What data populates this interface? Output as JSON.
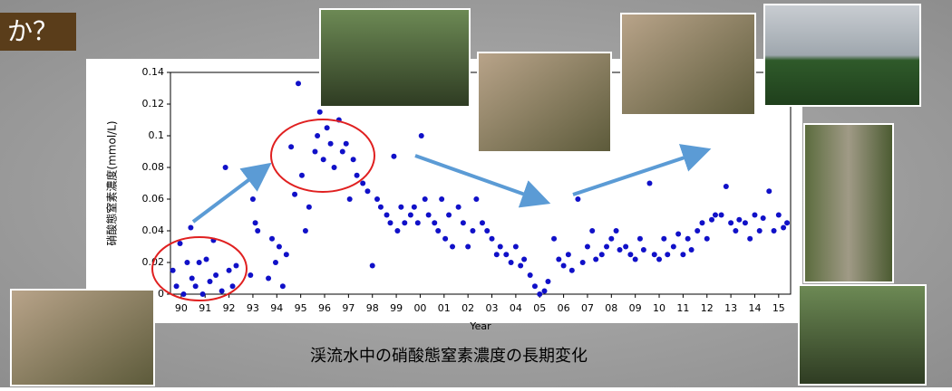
{
  "header": {
    "title": "か？"
  },
  "caption": "渓流水中の硝酸態窒素濃度の長期変化",
  "chart_data": {
    "type": "scatter",
    "x_label": "Year",
    "y_label": "硝酸態窒素濃度(mmol/L)",
    "color": "#1010c8",
    "x": [
      1989.65,
      1989.8,
      1989.95,
      1990.1,
      1990.25,
      1990.4,
      1990.45,
      1990.6,
      1990.75,
      1990.9,
      1991.05,
      1991.2,
      1991.35,
      1991.45,
      1991.7,
      1991.85,
      1992.0,
      1992.15,
      1992.3,
      1992.9,
      1993.0,
      1993.1,
      1993.2,
      1993.65,
      1993.8,
      1993.95,
      1994.1,
      1994.25,
      1994.4,
      1994.6,
      1994.75,
      1994.9,
      1995.05,
      1995.2,
      1995.35,
      1995.6,
      1995.7,
      1995.8,
      1995.95,
      1996.1,
      1996.25,
      1996.4,
      1996.6,
      1996.75,
      1996.9,
      1997.05,
      1997.2,
      1997.35,
      1997.6,
      1997.8,
      1998.0,
      1998.2,
      1998.35,
      1998.6,
      1998.75,
      1998.9,
      1999.05,
      1999.2,
      1999.35,
      1999.6,
      1999.75,
      1999.9,
      2000.05,
      2000.2,
      2000.35,
      2000.6,
      2000.75,
      2000.9,
      2001.05,
      2001.2,
      2001.35,
      2001.6,
      2001.8,
      2002.0,
      2002.2,
      2002.35,
      2002.6,
      2002.8,
      2003.0,
      2003.2,
      2003.35,
      2003.6,
      2003.8,
      2004.0,
      2004.2,
      2004.35,
      2004.6,
      2004.8,
      2005.0,
      2005.2,
      2005.35,
      2005.6,
      2005.8,
      2006.0,
      2006.2,
      2006.35,
      2006.6,
      2006.8,
      2007.0,
      2007.2,
      2007.35,
      2007.6,
      2007.8,
      2008.0,
      2008.2,
      2008.35,
      2008.6,
      2008.8,
      2009.0,
      2009.2,
      2009.35,
      2009.6,
      2009.8,
      2010.0,
      2010.2,
      2010.35,
      2010.6,
      2010.8,
      2011.0,
      2011.2,
      2011.35,
      2011.6,
      2011.8,
      2012.0,
      2012.2,
      2012.35,
      2012.6,
      2012.8,
      2013.0,
      2013.2,
      2013.35,
      2013.6,
      2013.8,
      2014.0,
      2014.2,
      2014.35,
      2014.6,
      2014.8,
      2015.0,
      2015.2,
      2015.35
    ],
    "values": [
      0.015,
      0.005,
      0.032,
      0.0,
      0.02,
      0.042,
      0.01,
      0.005,
      0.02,
      0.0,
      0.022,
      0.008,
      0.034,
      0.012,
      0.002,
      0.08,
      0.015,
      0.005,
      0.018,
      0.012,
      0.06,
      0.045,
      0.04,
      0.01,
      0.035,
      0.02,
      0.03,
      0.005,
      0.025,
      0.093,
      0.063,
      0.133,
      0.075,
      0.04,
      0.055,
      0.09,
      0.1,
      0.115,
      0.085,
      0.105,
      0.095,
      0.08,
      0.11,
      0.09,
      0.095,
      0.06,
      0.085,
      0.075,
      0.07,
      0.065,
      0.018,
      0.06,
      0.055,
      0.05,
      0.045,
      0.087,
      0.04,
      0.055,
      0.045,
      0.05,
      0.055,
      0.045,
      0.1,
      0.06,
      0.05,
      0.045,
      0.04,
      0.06,
      0.035,
      0.05,
      0.03,
      0.055,
      0.045,
      0.03,
      0.04,
      0.06,
      0.045,
      0.04,
      0.035,
      0.025,
      0.03,
      0.025,
      0.02,
      0.03,
      0.018,
      0.022,
      0.012,
      0.005,
      0.0,
      0.002,
      0.008,
      0.035,
      0.022,
      0.018,
      0.025,
      0.015,
      0.06,
      0.02,
      0.03,
      0.04,
      0.022,
      0.025,
      0.03,
      0.035,
      0.04,
      0.028,
      0.03,
      0.025,
      0.022,
      0.035,
      0.028,
      0.07,
      0.025,
      0.022,
      0.035,
      0.025,
      0.03,
      0.038,
      0.025,
      0.035,
      0.028,
      0.04,
      0.045,
      0.035,
      0.047,
      0.05,
      0.05,
      0.068,
      0.045,
      0.04,
      0.047,
      0.045,
      0.035,
      0.05,
      0.04,
      0.048,
      0.065,
      0.04,
      0.05,
      0.042,
      0.045
    ],
    "xlim": [
      1989.55,
      2015.5
    ],
    "xticks": [
      {
        "value": 1990,
        "label": "90"
      },
      {
        "value": 1991,
        "label": "91"
      },
      {
        "value": 1992,
        "label": "92"
      },
      {
        "value": 1993,
        "label": "93"
      },
      {
        "value": 1994,
        "label": "94"
      },
      {
        "value": 1995,
        "label": "95"
      },
      {
        "value": 1996,
        "label": "96"
      },
      {
        "value": 1997,
        "label": "97"
      },
      {
        "value": 1998,
        "label": "98"
      },
      {
        "value": 1999,
        "label": "99"
      },
      {
        "value": 2000,
        "label": "00"
      },
      {
        "value": 2001,
        "label": "01"
      },
      {
        "value": 2002,
        "label": "02"
      },
      {
        "value": 2003,
        "label": "03"
      },
      {
        "value": 2004,
        "label": "04"
      },
      {
        "value": 2005,
        "label": "05"
      },
      {
        "value": 2006,
        "label": "06"
      },
      {
        "value": 2007,
        "label": "07"
      },
      {
        "value": 2008,
        "label": "08"
      },
      {
        "value": 2009,
        "label": "09"
      },
      {
        "value": 2010,
        "label": "10"
      },
      {
        "value": 2011,
        "label": "11"
      },
      {
        "value": 2012,
        "label": "12"
      },
      {
        "value": 2013,
        "label": "13"
      },
      {
        "value": 2014,
        "label": "14"
      },
      {
        "value": 2015,
        "label": "15"
      }
    ],
    "ylim": [
      0,
      0.14
    ],
    "yticks": [
      0,
      0.02,
      0.04,
      0.06,
      0.08,
      0.1,
      0.12,
      0.14
    ]
  }
}
